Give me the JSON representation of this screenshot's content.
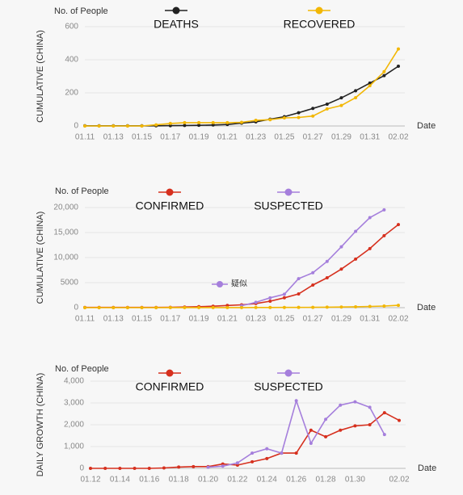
{
  "chart_data": [
    {
      "type": "line",
      "y_unit": "No. of People",
      "ylabel": "CUMULATIVE (CHINA)",
      "xlabel": "Date",
      "categories": [
        "01.11",
        null,
        "01.13",
        null,
        "01.15",
        null,
        "01.17",
        null,
        "01.19",
        null,
        "01.21",
        null,
        "01.23",
        null,
        "01.25",
        null,
        "01.27",
        null,
        "01.29",
        null,
        "01.31",
        null,
        "02.02"
      ],
      "ylim": [
        0,
        600
      ],
      "yticks": [
        0,
        200,
        400,
        600
      ],
      "grid": true,
      "series": [
        {
          "name": "DEATHS",
          "color": "#222222",
          "values": [
            1,
            1,
            1,
            1,
            1,
            1,
            2,
            3,
            4,
            6,
            9,
            17,
            25,
            41,
            56,
            80,
            106,
            132,
            170,
            213,
            259,
            304,
            361
          ]
        },
        {
          "name": "RECOVERED",
          "color": "#f2b705",
          "values": [
            0,
            0,
            0,
            0,
            0,
            7,
            15,
            20,
            20,
            20,
            20,
            22,
            34,
            38,
            49,
            51,
            60,
            103,
            124,
            171,
            243,
            328,
            465
          ]
        }
      ]
    },
    {
      "type": "line",
      "y_unit": "No. of People",
      "ylabel": "CUMULATIVE (CHINA)",
      "xlabel": "Date",
      "annotation": "疑似",
      "categories": [
        "01.11",
        null,
        "01.13",
        null,
        "01.15",
        null,
        "01.17",
        null,
        "01.19",
        null,
        "01.21",
        null,
        "01.23",
        null,
        "01.25",
        null,
        "01.27",
        null,
        "01.29",
        null,
        "01.31",
        null,
        "02.02"
      ],
      "ylim": [
        0,
        20000
      ],
      "yticks": [
        0,
        5000,
        {
          "value": 10000,
          "label": "10,000"
        },
        {
          "value": 15000,
          "label": "15,000"
        },
        {
          "value": 20000,
          "label": "20,000"
        }
      ],
      "grid": true,
      "series": [
        {
          "name": "CONFIRMED",
          "color": "#d6301e",
          "values": [
            41,
            41,
            41,
            41,
            41,
            45,
            62,
            121,
            198,
            291,
            440,
            571,
            830,
            1287,
            1975,
            2744,
            4515,
            5974,
            7711,
            9692,
            11791,
            14380,
            16600
          ]
        },
        {
          "name": "SUSPECTED",
          "color": "#a57fdc",
          "values": [
            null,
            null,
            null,
            null,
            null,
            null,
            null,
            null,
            null,
            null,
            null,
            393,
            1072,
            1965,
            2684,
            5794,
            6973,
            9239,
            12167,
            15238,
            17988,
            19544,
            null
          ]
        },
        {
          "color": "#f2b705",
          "values": [
            0,
            0,
            0,
            0,
            0,
            7,
            15,
            20,
            20,
            20,
            20,
            22,
            34,
            38,
            49,
            51,
            60,
            103,
            124,
            171,
            243,
            328,
            465
          ]
        }
      ]
    },
    {
      "type": "line",
      "y_unit": "No. of People",
      "ylabel": "DAILY GROWTH (CHINA)",
      "xlabel": "Date",
      "categories": [
        "01.12",
        null,
        "01.14",
        null,
        "01.16",
        null,
        "01.18",
        null,
        "01.20",
        null,
        "01.22",
        null,
        "01.24",
        null,
        "01.26",
        null,
        "01.28",
        null,
        "01.30",
        null,
        null,
        "02.02"
      ],
      "ylim": [
        0,
        4000
      ],
      "yticks": [
        0,
        {
          "value": 1000,
          "label": "1,000"
        },
        {
          "value": 2000,
          "label": "2,000"
        },
        {
          "value": 3000,
          "label": "3,000"
        },
        {
          "value": 4000,
          "label": "4,000"
        }
      ],
      "grid": true,
      "series": [
        {
          "name": "CONFIRMED",
          "color": "#d6301e",
          "values": [
            0,
            0,
            0,
            0,
            0,
            20,
            60,
            80,
            80,
            200,
            150,
            300,
            450,
            700,
            700,
            1750,
            1450,
            1750,
            1950,
            2000,
            2550,
            2200
          ]
        },
        {
          "name": "SUSPECTED",
          "color": "#a57fdc",
          "values": [
            null,
            null,
            null,
            null,
            null,
            null,
            null,
            null,
            50,
            100,
            250,
            700,
            900,
            700,
            3100,
            1150,
            2250,
            2900,
            3050,
            2800,
            1550,
            null
          ]
        }
      ]
    }
  ]
}
